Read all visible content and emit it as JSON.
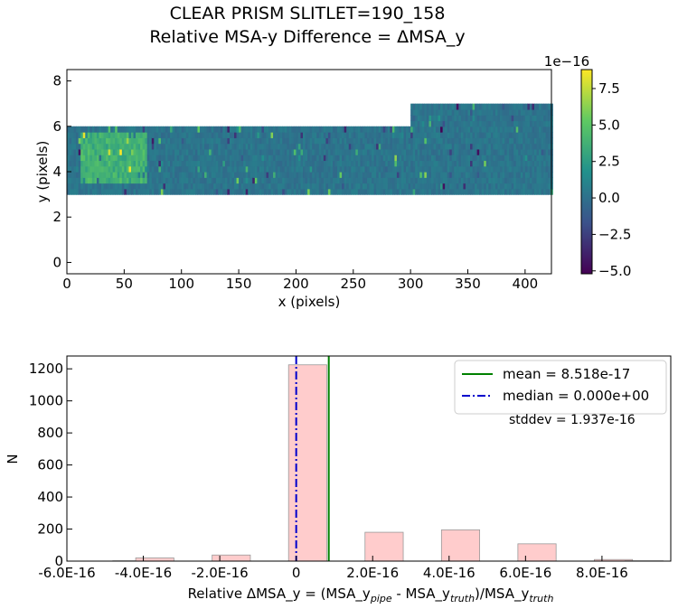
{
  "figure": {
    "title_line1": "CLEAR   PRISM   SLITLET=190_158",
    "title_line2": "Relative MSA-y Difference = ΔMSA_y"
  },
  "chart_data": [
    {
      "type": "heatmap",
      "xlabel": "x (pixels)",
      "ylabel": "y (pixels)",
      "xlim": [
        0,
        423
      ],
      "ylim": [
        -0.5,
        8.5
      ],
      "xticks": [
        "0",
        "50",
        "100",
        "150",
        "200",
        "250",
        "300",
        "350",
        "400"
      ],
      "yticks": [
        "0",
        "2",
        "4",
        "6",
        "8"
      ],
      "grid": false,
      "data_rows_segment_1": {
        "x": [
          0,
          300
        ],
        "y": [
          3,
          6
        ]
      },
      "data_rows_segment_2": {
        "x": [
          300,
          423
        ],
        "y": [
          3,
          7
        ]
      },
      "colormap": "viridis",
      "colorbar": {
        "range": [
          -5.2,
          8.8
        ],
        "ticks": [
          "−5.0",
          "−2.5",
          "0.0",
          "2.5",
          "5.0",
          "7.5"
        ],
        "scale_label": "1e−16"
      }
    },
    {
      "type": "bar",
      "xlabel": "Relative ΔMSA_y = (MSA_y",
      "xlabel_pipe": "pipe",
      "xlabel_mid": " - MSA_y",
      "xlabel_truth": "truth",
      "xlabel_tail": ")/MSA_y",
      "xlabel_truth2": "truth",
      "ylabel": "N",
      "xlim": [
        -6e-16,
        9.8e-16
      ],
      "ylim": [
        0,
        1280
      ],
      "xticks": [
        "-6.0E-16",
        "-4.0E-16",
        "-2.0E-16",
        "0",
        "2.0E-16",
        "4.0E-16",
        "6.0E-16",
        "8.0E-16"
      ],
      "yticks": [
        "0",
        "200",
        "400",
        "600",
        "800",
        "1000",
        "1200"
      ],
      "bins": [
        {
          "x": -4.8e-16,
          "count": 2
        },
        {
          "x": -4.2e-16,
          "count": 20
        },
        {
          "x": -2.2e-16,
          "count": 38
        },
        {
          "x": -2e-17,
          "count": 1225
        },
        {
          "x": 1.8e-16,
          "count": 180
        },
        {
          "x": 3.8e-16,
          "count": 195
        },
        {
          "x": 5.8e-16,
          "count": 108
        },
        {
          "x": 7.8e-16,
          "count": 10
        },
        {
          "x": 8.6e-16,
          "count": 2
        }
      ],
      "bin_width": 1e-16,
      "bar_color": "#ffcccc",
      "mean": {
        "value": 8.518e-17,
        "label": "mean = 8.518e-17",
        "color": "#008000"
      },
      "median": {
        "value": 0.0,
        "label": "median = 0.000e+00",
        "color": "#0000cc"
      },
      "stddev_label": "stddev = 1.937e-16",
      "legend_position": "top-right"
    }
  ]
}
